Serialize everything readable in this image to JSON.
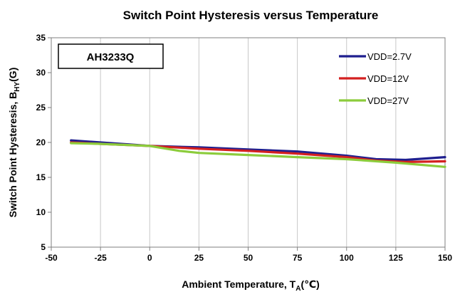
{
  "chart_data": {
    "type": "line",
    "title": "Switch Point Hysteresis versus Temperature",
    "xlabel": {
      "main": "Ambient  Temperature, T",
      "sub": "A",
      "tail": "(℃)"
    },
    "ylabel": {
      "main": "Switch Point Hysteresis, B",
      "sub": "HY",
      "tail": "(G)"
    },
    "box_label": "AH3233Q",
    "xlim": [
      -50,
      150
    ],
    "ylim": [
      5,
      35
    ],
    "xticks": [
      -50,
      -25,
      0,
      25,
      50,
      75,
      100,
      125,
      150
    ],
    "yticks": [
      5,
      10,
      15,
      20,
      25,
      30,
      35
    ],
    "grid": {
      "vertical": true,
      "horizontal": false
    },
    "legend_position": "top-right",
    "series": [
      {
        "name": "VDD=2.7V",
        "color": "#1f1f8f",
        "points": [
          [
            -40,
            20.3
          ],
          [
            -25,
            20.0
          ],
          [
            0,
            19.5
          ],
          [
            25,
            19.3
          ],
          [
            50,
            19.0
          ],
          [
            75,
            18.7
          ],
          [
            100,
            18.1
          ],
          [
            115,
            17.6
          ],
          [
            130,
            17.5
          ],
          [
            150,
            17.9
          ]
        ]
      },
      {
        "name": "VDD=12V",
        "color": "#d42020",
        "points": [
          [
            -40,
            20.0
          ],
          [
            -25,
            19.8
          ],
          [
            0,
            19.5
          ],
          [
            25,
            19.1
          ],
          [
            50,
            18.8
          ],
          [
            75,
            18.4
          ],
          [
            100,
            17.9
          ],
          [
            115,
            17.4
          ],
          [
            130,
            17.2
          ],
          [
            150,
            17.3
          ]
        ]
      },
      {
        "name": "VDD=27V",
        "color": "#8ccc3c",
        "points": [
          [
            -40,
            19.9
          ],
          [
            -25,
            19.8
          ],
          [
            0,
            19.5
          ],
          [
            15,
            18.8
          ],
          [
            25,
            18.5
          ],
          [
            50,
            18.2
          ],
          [
            75,
            17.9
          ],
          [
            100,
            17.6
          ],
          [
            125,
            17.1
          ],
          [
            150,
            16.5
          ]
        ]
      }
    ]
  }
}
